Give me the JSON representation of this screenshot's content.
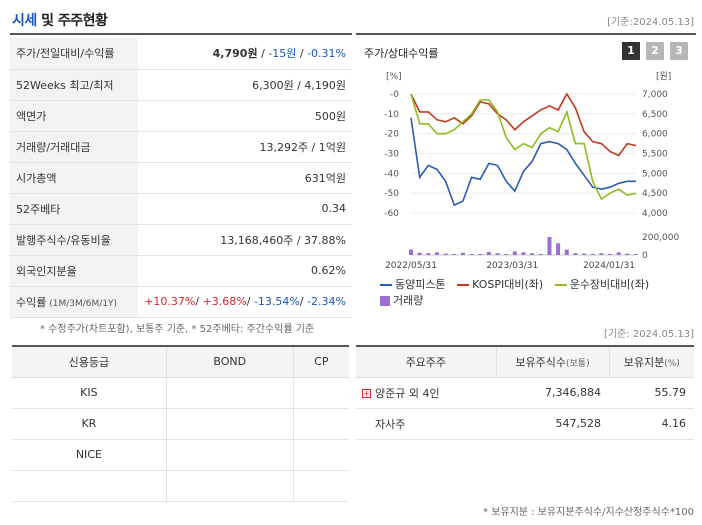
{
  "header": {
    "title_accent": "시세",
    "title_rest": " 및 주주현황",
    "date": "[기준:2024.05.13]"
  },
  "quote": {
    "price_row": {
      "label": "주가/전일대비/수익률",
      "price": "4,790원",
      "sep1": " / ",
      "change": "-15원",
      "sep2": " / ",
      "rate": "-0.31%"
    },
    "week52": {
      "label": "52Weeks 최고/최저",
      "value": "6,300원 / 4,190원"
    },
    "par": {
      "label": "액면가",
      "value": "500원"
    },
    "volume": {
      "label": "거래량/거래대금",
      "value": "13,292주 / 1억원"
    },
    "market_cap": {
      "label": "시가총액",
      "value": "631억원"
    },
    "beta": {
      "label": "52주베타",
      "value": "0.34"
    },
    "shares": {
      "label": "발행주식수/유동비율",
      "value": "13,168,460주 / 37.88%"
    },
    "foreign": {
      "label": "외국인지분율",
      "value": "0.62%"
    },
    "returns": {
      "label": "수익률",
      "label_small": " (1M/3M/6M/1Y)",
      "r1": "+10.37%",
      "r2": "+3.68%",
      "r3": "-13.54%",
      "r4": "-2.34%",
      "sep": "/ "
    }
  },
  "footnote_left": "* 수정주가(차트포함), 보통주 기준, * 52주베타: 주간수익률 기준",
  "chart": {
    "title": "주가/상대수익률",
    "buttons": [
      "1",
      "2",
      "3"
    ],
    "left_unit": "[%]",
    "right_unit": "[원]"
  },
  "chart_data": {
    "type": "line",
    "x": [
      "2022/05/31",
      "",
      "",
      "",
      "",
      "",
      "",
      "",
      "",
      "",
      "",
      "",
      "",
      "",
      "",
      "",
      "",
      "",
      "",
      "",
      "",
      "",
      "",
      "",
      "",
      "",
      ""
    ],
    "xtick_labels": [
      "2022/05/31",
      "2023/03/31",
      "2024/01/31"
    ],
    "ylim_left": [
      -60,
      0
    ],
    "yticks_left": [
      "-0",
      "-10",
      "-20",
      "-30",
      "-40",
      "-50",
      "-60"
    ],
    "ylim_right": [
      4000,
      7000
    ],
    "yticks_right": [
      "7,000",
      "6,500",
      "6,000",
      "5,500",
      "5,000",
      "4,500",
      "4,000"
    ],
    "volume_ticks": [
      "200,000",
      "0"
    ],
    "series": [
      {
        "name": "동양피스톤",
        "color": "#2a5bb8",
        "axis": "left",
        "values": [
          -12,
          -42,
          -36,
          -38,
          -44,
          -56,
          -54,
          -42,
          -43,
          -35,
          -36,
          -44,
          -49,
          -39,
          -34,
          -25,
          -24,
          -25,
          -28,
          -35,
          -41,
          -47,
          -48,
          -47,
          -45,
          -44,
          -44
        ]
      },
      {
        "name": "KOSPI대비(좌)",
        "color": "#c03a1e",
        "axis": "left",
        "values": [
          0,
          -9,
          -9,
          -13,
          -14,
          -12,
          -15,
          -11,
          -4,
          -5,
          -10,
          -13,
          -18,
          -14,
          -11,
          -8,
          -6,
          -8,
          0,
          -7,
          -19,
          -24,
          -25,
          -29,
          -31,
          -25,
          -26
        ]
      },
      {
        "name": "운수장비대비(좌)",
        "color": "#8cbe1e",
        "axis": "left",
        "values": [
          0,
          -15,
          -15,
          -20,
          -20,
          -18,
          -14,
          -10,
          -3,
          -3,
          -9,
          -22,
          -28,
          -25,
          -27,
          -20,
          -17,
          -19,
          -9,
          -25,
          -25,
          -44,
          -53,
          -50,
          -48,
          -51,
          -50
        ]
      }
    ],
    "volume": {
      "name": "거래량",
      "color": "#9b6fcf",
      "values": [
        60000,
        25000,
        20000,
        30000,
        15000,
        10000,
        25000,
        10000,
        8000,
        35000,
        20000,
        10000,
        40000,
        30000,
        20000,
        10000,
        200000,
        130000,
        60000,
        20000,
        15000,
        10000,
        20000,
        10000,
        30000,
        15000,
        10000
      ]
    }
  },
  "legend": {
    "s1": "동양피스톤",
    "s2": "KOSPI대비(좌)",
    "s3": "운수장비대비(좌)",
    "s4": "거래량"
  },
  "date_right": "[기준: 2024.05.13]",
  "credit": {
    "headers": [
      "신용등급",
      "BOND",
      "CP"
    ],
    "rows": [
      {
        "agency": "KIS",
        "bond": "",
        "cp": ""
      },
      {
        "agency": "KR",
        "bond": "",
        "cp": ""
      },
      {
        "agency": "NICE",
        "bond": "",
        "cp": ""
      },
      {
        "agency": "",
        "bond": "",
        "cp": ""
      }
    ]
  },
  "holders": {
    "h_name": "주요주주",
    "h_shares": "보유주식수",
    "h_shares_unit": "(보통)",
    "h_ratio": "보유지분",
    "h_ratio_unit": "(%)",
    "rows": [
      {
        "name": "양준규 외 4인",
        "shares": "7,346,884",
        "ratio": "55.79"
      },
      {
        "name": "자사주",
        "shares": "547,528",
        "ratio": "4.16"
      }
    ]
  },
  "footnote_right": "* 보유지분 : 보유지분주식수/지수산정주식수*100"
}
